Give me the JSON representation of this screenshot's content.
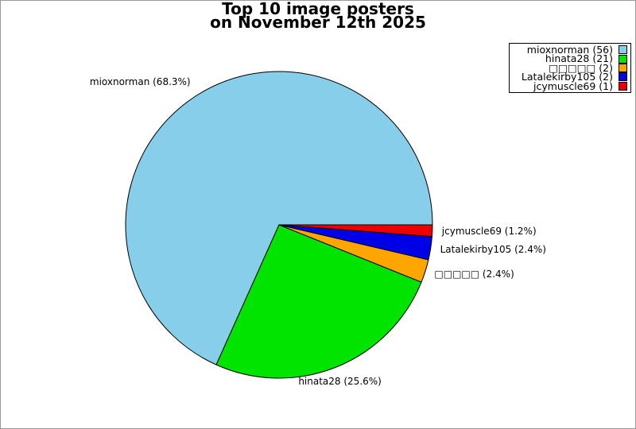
{
  "title": {
    "line1": "Top 10 image posters",
    "line2": "on November 12th 2025"
  },
  "chart_data": {
    "type": "pie",
    "title": "Top 10 image posters on November 12th 2025",
    "total": 82,
    "start_angle_deg": 0,
    "direction": "counterclockwise",
    "legend_position": "upper-right",
    "background_color": "#FFFFFF",
    "frame_border_color": "#999999",
    "slice_edge_color": "#000000",
    "slices": [
      {
        "name": "mioxnorman",
        "value": 56,
        "percent": 68.3,
        "pie_label": "mioxnorman (68.3%)",
        "legend_label": "mioxnorman (56)",
        "color": "#87CEEB"
      },
      {
        "name": "hinata28",
        "value": 21,
        "percent": 25.6,
        "pie_label": "hinata28 (25.6%)",
        "legend_label": "hinata28 (21)",
        "color": "#00E400"
      },
      {
        "name": "□□□□□",
        "value": 2,
        "percent": 2.4,
        "pie_label": "□□□□□ (2.4%)",
        "legend_label": "□□□□□ (2)",
        "color": "#FFA500"
      },
      {
        "name": "Latalekirby105",
        "value": 2,
        "percent": 2.4,
        "pie_label": "Latalekirby105 (2.4%)",
        "legend_label": "Latalekirby105 (2)",
        "color": "#0000E6"
      },
      {
        "name": "jcymuscle69",
        "value": 1,
        "percent": 1.2,
        "pie_label": "jcymuscle69 (1.2%)",
        "legend_label": "jcymuscle69 (1)",
        "color": "#EE0000"
      }
    ]
  }
}
